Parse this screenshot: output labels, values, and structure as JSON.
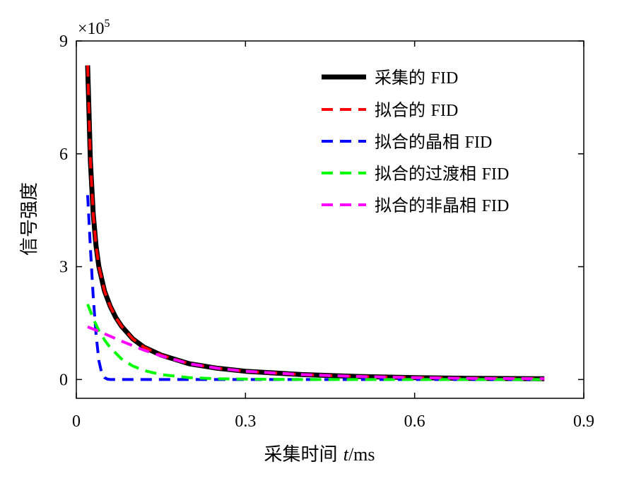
{
  "chart_data": {
    "type": "line",
    "title": "",
    "xlabel_prefix": "采集时间 ",
    "xlabel_var": "t",
    "xlabel_unit": "/ms",
    "ylabel": "信号强度",
    "y_multiplier_base": "×10",
    "y_multiplier_exp": "5",
    "xlim": [
      0,
      0.9
    ],
    "ylim": [
      -0.5,
      9
    ],
    "xticks": [
      0,
      0.3,
      0.6,
      0.9
    ],
    "xtick_labels": [
      "0",
      "0.3",
      "0.6",
      "0.9"
    ],
    "yticks": [
      0,
      3,
      6,
      9
    ],
    "ytick_labels": [
      "0",
      "3",
      "6",
      "9"
    ],
    "grid": false,
    "legend_position": "top-right",
    "series": [
      {
        "name": "采集的 FID",
        "color": "#000000",
        "style": "solid",
        "x": [
          0.02,
          0.025,
          0.03,
          0.035,
          0.04,
          0.05,
          0.06,
          0.07,
          0.08,
          0.1,
          0.12,
          0.15,
          0.2,
          0.25,
          0.3,
          0.4,
          0.5,
          0.6,
          0.7,
          0.83
        ],
        "y": [
          8.35,
          5.8,
          4.4,
          3.55,
          3.0,
          2.35,
          1.95,
          1.65,
          1.42,
          1.08,
          0.86,
          0.65,
          0.42,
          0.3,
          0.22,
          0.13,
          0.08,
          0.05,
          0.03,
          0.02
        ]
      },
      {
        "name": "拟合的 FID",
        "color": "#ff0000",
        "style": "dashed",
        "x": [
          0.02,
          0.025,
          0.03,
          0.035,
          0.04,
          0.05,
          0.06,
          0.07,
          0.08,
          0.1,
          0.12,
          0.15,
          0.2,
          0.25,
          0.3,
          0.4,
          0.5,
          0.6,
          0.7,
          0.83
        ],
        "y": [
          8.35,
          5.8,
          4.4,
          3.55,
          3.0,
          2.35,
          1.95,
          1.65,
          1.42,
          1.08,
          0.86,
          0.65,
          0.42,
          0.3,
          0.22,
          0.13,
          0.08,
          0.05,
          0.03,
          0.02
        ]
      },
      {
        "name": "拟合的晶相 FID",
        "color": "#0000ff",
        "style": "dashed",
        "x": [
          0.02,
          0.025,
          0.03,
          0.035,
          0.04,
          0.045,
          0.05,
          0.055,
          0.06,
          0.08,
          0.2,
          0.4,
          0.6,
          0.83
        ],
        "y": [
          4.9,
          3.5,
          2.2,
          1.2,
          0.5,
          0.17,
          0.05,
          0.01,
          0.0,
          0.0,
          0.0,
          0.0,
          0.0,
          0.0
        ]
      },
      {
        "name": "拟合的过渡相 FID",
        "color": "#00ff00",
        "style": "dashed",
        "x": [
          0.02,
          0.03,
          0.04,
          0.05,
          0.06,
          0.08,
          0.1,
          0.12,
          0.15,
          0.2,
          0.25,
          0.3,
          0.4,
          0.6,
          0.83
        ],
        "y": [
          2.0,
          1.62,
          1.3,
          1.05,
          0.85,
          0.55,
          0.36,
          0.24,
          0.13,
          0.05,
          0.02,
          0.01,
          0.0,
          0.0,
          0.0
        ]
      },
      {
        "name": "拟合的非晶相 FID",
        "color": "#ff00ff",
        "style": "dashed",
        "x": [
          0.02,
          0.04,
          0.06,
          0.08,
          0.1,
          0.12,
          0.15,
          0.2,
          0.25,
          0.3,
          0.4,
          0.5,
          0.6,
          0.7,
          0.83
        ],
        "y": [
          1.4,
          1.28,
          1.15,
          1.02,
          0.9,
          0.78,
          0.63,
          0.42,
          0.3,
          0.22,
          0.13,
          0.08,
          0.05,
          0.03,
          0.02
        ]
      }
    ]
  }
}
